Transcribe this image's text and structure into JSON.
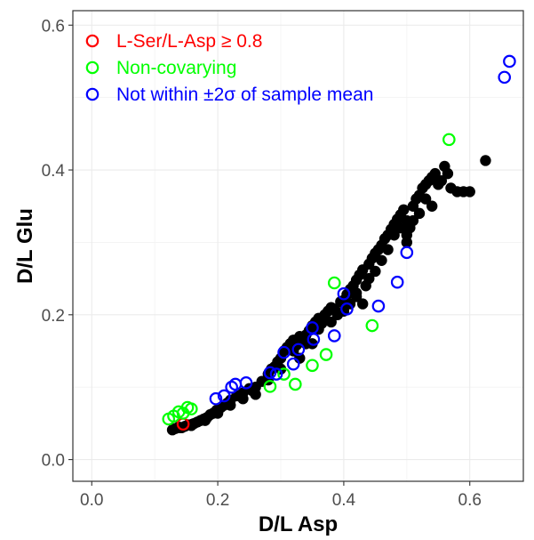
{
  "chart_data": {
    "type": "scatter",
    "title": "",
    "xlabel": "D/L Asp",
    "ylabel": "D/L Glu",
    "xlim": [
      -0.03,
      0.685
    ],
    "ylim": [
      -0.03,
      0.62
    ],
    "x_ticks": [
      0.0,
      0.2,
      0.4,
      0.6
    ],
    "y_ticks": [
      0.0,
      0.2,
      0.4,
      0.6
    ],
    "x_tick_labels": [
      "0.0",
      "0.2",
      "0.4",
      "0.6"
    ],
    "y_tick_labels": [
      "0.0",
      "0.2",
      "0.4",
      "0.6"
    ],
    "grid": true,
    "legend_position": "top-left",
    "series": [
      {
        "name": "",
        "marker": "filled-circle",
        "color": "#000000",
        "points": [
          [
            0.128,
            0.041
          ],
          [
            0.133,
            0.043
          ],
          [
            0.138,
            0.045
          ],
          [
            0.143,
            0.044
          ],
          [
            0.148,
            0.046
          ],
          [
            0.153,
            0.048
          ],
          [
            0.158,
            0.047
          ],
          [
            0.163,
            0.05
          ],
          [
            0.168,
            0.052
          ],
          [
            0.173,
            0.054
          ],
          [
            0.178,
            0.056
          ],
          [
            0.183,
            0.058
          ],
          [
            0.188,
            0.062
          ],
          [
            0.193,
            0.064
          ],
          [
            0.198,
            0.068
          ],
          [
            0.205,
            0.072
          ],
          [
            0.21,
            0.075
          ],
          [
            0.215,
            0.078
          ],
          [
            0.22,
            0.082
          ],
          [
            0.23,
            0.088
          ],
          [
            0.24,
            0.092
          ],
          [
            0.25,
            0.098
          ],
          [
            0.255,
            0.095
          ],
          [
            0.26,
            0.1
          ],
          [
            0.27,
            0.108
          ],
          [
            0.28,
            0.118
          ],
          [
            0.285,
            0.125
          ],
          [
            0.29,
            0.128
          ],
          [
            0.295,
            0.135
          ],
          [
            0.3,
            0.14
          ],
          [
            0.305,
            0.15
          ],
          [
            0.31,
            0.155
          ],
          [
            0.315,
            0.16
          ],
          [
            0.32,
            0.165
          ],
          [
            0.325,
            0.158
          ],
          [
            0.33,
            0.17
          ],
          [
            0.335,
            0.168
          ],
          [
            0.34,
            0.172
          ],
          [
            0.345,
            0.178
          ],
          [
            0.35,
            0.185
          ],
          [
            0.355,
            0.19
          ],
          [
            0.36,
            0.195
          ],
          [
            0.365,
            0.188
          ],
          [
            0.37,
            0.2
          ],
          [
            0.375,
            0.205
          ],
          [
            0.38,
            0.21
          ],
          [
            0.385,
            0.208
          ],
          [
            0.39,
            0.2
          ],
          [
            0.395,
            0.218
          ],
          [
            0.4,
            0.22
          ],
          [
            0.405,
            0.228
          ],
          [
            0.41,
            0.235
          ],
          [
            0.415,
            0.24
          ],
          [
            0.42,
            0.248
          ],
          [
            0.425,
            0.255
          ],
          [
            0.43,
            0.262
          ],
          [
            0.435,
            0.24
          ],
          [
            0.44,
            0.27
          ],
          [
            0.445,
            0.278
          ],
          [
            0.45,
            0.285
          ],
          [
            0.455,
            0.29
          ],
          [
            0.46,
            0.296
          ],
          [
            0.465,
            0.305
          ],
          [
            0.47,
            0.31
          ],
          [
            0.475,
            0.318
          ],
          [
            0.48,
            0.325
          ],
          [
            0.485,
            0.332
          ],
          [
            0.49,
            0.338
          ],
          [
            0.495,
            0.345
          ],
          [
            0.5,
            0.33
          ],
          [
            0.505,
            0.32
          ],
          [
            0.51,
            0.35
          ],
          [
            0.515,
            0.36
          ],
          [
            0.52,
            0.365
          ],
          [
            0.525,
            0.375
          ],
          [
            0.53,
            0.38
          ],
          [
            0.535,
            0.385
          ],
          [
            0.54,
            0.39
          ],
          [
            0.545,
            0.395
          ],
          [
            0.55,
            0.38
          ],
          [
            0.555,
            0.385
          ],
          [
            0.56,
            0.405
          ],
          [
            0.565,
            0.395
          ],
          [
            0.57,
            0.375
          ],
          [
            0.58,
            0.37
          ],
          [
            0.59,
            0.37
          ],
          [
            0.6,
            0.37
          ],
          [
            0.625,
            0.413
          ],
          [
            0.43,
            0.215
          ],
          [
            0.42,
            0.225
          ],
          [
            0.41,
            0.215
          ],
          [
            0.35,
            0.16
          ],
          [
            0.33,
            0.14
          ],
          [
            0.32,
            0.15
          ],
          [
            0.3,
            0.125
          ],
          [
            0.28,
            0.11
          ],
          [
            0.26,
            0.09
          ],
          [
            0.24,
            0.084
          ],
          [
            0.22,
            0.075
          ],
          [
            0.2,
            0.064
          ],
          [
            0.18,
            0.054
          ],
          [
            0.16,
            0.049
          ],
          [
            0.14,
            0.044
          ],
          [
            0.45,
            0.26
          ],
          [
            0.47,
            0.29
          ],
          [
            0.49,
            0.32
          ],
          [
            0.51,
            0.33
          ],
          [
            0.52,
            0.34
          ],
          [
            0.53,
            0.36
          ],
          [
            0.54,
            0.35
          ],
          [
            0.5,
            0.3
          ],
          [
            0.48,
            0.31
          ],
          [
            0.46,
            0.275
          ],
          [
            0.44,
            0.25
          ],
          [
            0.38,
            0.19
          ],
          [
            0.36,
            0.18
          ],
          [
            0.34,
            0.16
          ],
          [
            0.4,
            0.205
          ],
          [
            0.42,
            0.23
          ],
          [
            0.5,
            0.31
          ]
        ]
      },
      {
        "name": "L-Ser/L-Asp ≥ 0.8",
        "marker": "open-circle",
        "color": "#ff0000",
        "points": [
          [
            0.145,
            0.049
          ]
        ]
      },
      {
        "name": "Non-covarying",
        "marker": "open-circle",
        "color": "#00ff00",
        "points": [
          [
            0.122,
            0.056
          ],
          [
            0.13,
            0.06
          ],
          [
            0.138,
            0.066
          ],
          [
            0.145,
            0.064
          ],
          [
            0.152,
            0.072
          ],
          [
            0.158,
            0.07
          ],
          [
            0.283,
            0.101
          ],
          [
            0.305,
            0.118
          ],
          [
            0.323,
            0.104
          ],
          [
            0.35,
            0.13
          ],
          [
            0.372,
            0.145
          ],
          [
            0.385,
            0.244
          ],
          [
            0.445,
            0.185
          ],
          [
            0.567,
            0.442
          ]
        ]
      },
      {
        "name": "Not within ±2σ of sample mean",
        "marker": "open-circle",
        "color": "#0000ff",
        "points": [
          [
            0.197,
            0.084
          ],
          [
            0.21,
            0.088
          ],
          [
            0.222,
            0.1
          ],
          [
            0.228,
            0.104
          ],
          [
            0.245,
            0.106
          ],
          [
            0.283,
            0.12
          ],
          [
            0.293,
            0.118
          ],
          [
            0.305,
            0.148
          ],
          [
            0.32,
            0.132
          ],
          [
            0.328,
            0.152
          ],
          [
            0.35,
            0.182
          ],
          [
            0.352,
            0.166
          ],
          [
            0.385,
            0.171
          ],
          [
            0.4,
            0.229
          ],
          [
            0.405,
            0.208
          ],
          [
            0.455,
            0.212
          ],
          [
            0.485,
            0.245
          ],
          [
            0.5,
            0.286
          ],
          [
            0.655,
            0.528
          ],
          [
            0.663,
            0.55
          ]
        ]
      }
    ]
  }
}
